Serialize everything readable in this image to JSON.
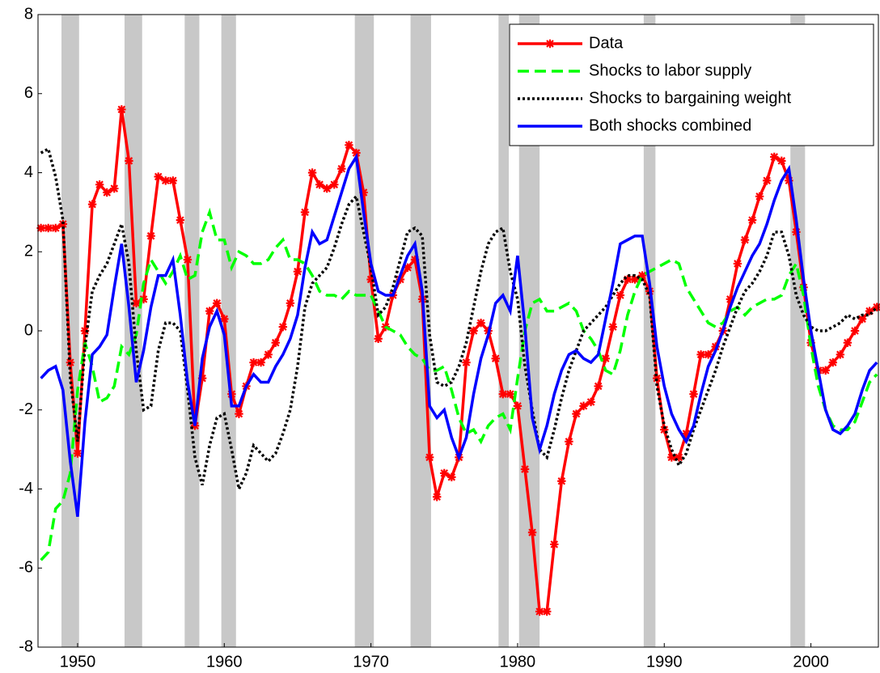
{
  "chart_data": {
    "type": "line",
    "x": [
      1947.5,
      1948,
      1948.5,
      1949,
      1949.5,
      1950,
      1950.5,
      1951,
      1951.5,
      1952,
      1952.5,
      1953,
      1953.5,
      1954,
      1954.5,
      1955,
      1955.5,
      1956,
      1956.5,
      1957,
      1957.5,
      1958,
      1958.5,
      1959,
      1959.5,
      1960,
      1960.5,
      1961,
      1961.5,
      1962,
      1962.5,
      1963,
      1963.5,
      1964,
      1964.5,
      1965,
      1965.5,
      1966,
      1966.5,
      1967,
      1967.5,
      1968,
      1968.5,
      1969,
      1969.5,
      1970,
      1970.5,
      1971,
      1971.5,
      1972,
      1972.5,
      1973,
      1973.5,
      1974,
      1974.5,
      1975,
      1975.5,
      1976,
      1976.5,
      1977,
      1977.5,
      1978,
      1978.5,
      1979,
      1979.5,
      1980,
      1980.5,
      1981,
      1981.5,
      1982,
      1982.5,
      1983,
      1983.5,
      1984,
      1984.5,
      1985,
      1985.5,
      1986,
      1986.5,
      1987,
      1987.5,
      1988,
      1988.5,
      1989,
      1989.5,
      1990,
      1990.5,
      1991,
      1991.5,
      1992,
      1992.5,
      1993,
      1993.5,
      1994,
      1994.5,
      1995,
      1995.5,
      1996,
      1996.5,
      1997,
      1997.5,
      1998,
      1998.5,
      1999,
      1999.5,
      2000,
      2000.5,
      2001,
      2001.5,
      2002,
      2002.5,
      2003,
      2003.5,
      2004,
      2004.5
    ],
    "series": [
      {
        "name": "Data",
        "color": "#ff0000",
        "line_style": "solid",
        "marker": "x",
        "values": [
          2.6,
          2.6,
          2.6,
          2.7,
          -0.8,
          -3.1,
          0.0,
          3.2,
          3.7,
          3.5,
          3.6,
          5.6,
          4.3,
          0.7,
          0.8,
          2.4,
          3.9,
          3.8,
          3.8,
          2.8,
          1.8,
          -2.4,
          -1.2,
          0.5,
          0.7,
          0.3,
          -1.6,
          -2.1,
          -1.4,
          -0.8,
          -0.8,
          -0.6,
          -0.3,
          0.1,
          0.7,
          1.5,
          3.0,
          4.0,
          3.7,
          3.6,
          3.7,
          4.1,
          4.7,
          4.5,
          3.5,
          1.3,
          -0.2,
          0.1,
          0.9,
          1.3,
          1.6,
          1.8,
          0.8,
          -3.2,
          -4.2,
          -3.6,
          -3.7,
          -3.2,
          -0.8,
          0.0,
          0.2,
          0.0,
          -0.7,
          -1.6,
          -1.6,
          -1.9,
          -3.5,
          -5.1,
          -7.1,
          -7.1,
          -5.4,
          -3.8,
          -2.8,
          -2.1,
          -1.9,
          -1.8,
          -1.4,
          -0.7,
          0.1,
          0.9,
          1.3,
          1.3,
          1.4,
          1.0,
          -1.2,
          -2.5,
          -3.2,
          -3.2,
          -2.6,
          -1.6,
          -0.6,
          -0.6,
          -0.4,
          0.0,
          0.8,
          1.7,
          2.3,
          2.8,
          3.4,
          3.8,
          4.4,
          4.3,
          3.8,
          2.5,
          1.1,
          -0.3,
          -1.0,
          -1.0,
          -0.8,
          -0.6,
          -0.3,
          0.0,
          0.3,
          0.5,
          0.6
        ]
      },
      {
        "name": "Shocks to labor supply",
        "color": "#00ff00",
        "line_style": "dashed",
        "values": [
          -5.8,
          -5.6,
          -4.5,
          -4.3,
          -3.6,
          -1.5,
          -0.3,
          -0.9,
          -1.8,
          -1.7,
          -1.4,
          -0.4,
          -0.6,
          -0.1,
          1.2,
          1.8,
          1.5,
          1.2,
          1.5,
          1.9,
          1.3,
          1.4,
          2.5,
          3.0,
          2.3,
          2.3,
          1.6,
          2.0,
          1.9,
          1.7,
          1.7,
          1.8,
          2.1,
          2.3,
          1.8,
          1.8,
          1.7,
          1.4,
          1.0,
          0.9,
          0.9,
          0.8,
          1.0,
          0.9,
          0.9,
          0.9,
          0.5,
          0.1,
          0.0,
          -0.1,
          -0.4,
          -0.6,
          -0.7,
          -1.0,
          -1.0,
          -0.9,
          -1.5,
          -2.2,
          -2.6,
          -2.5,
          -2.8,
          -2.4,
          -2.2,
          -2.1,
          -2.5,
          -1.2,
          0.0,
          0.7,
          0.8,
          0.5,
          0.5,
          0.6,
          0.7,
          0.5,
          0.0,
          -0.2,
          -0.5,
          -1.0,
          -1.1,
          -0.5,
          0.4,
          1.0,
          1.4,
          1.5,
          1.6,
          1.7,
          1.8,
          1.7,
          1.1,
          0.8,
          0.5,
          0.2,
          0.1,
          0.2,
          0.5,
          0.6,
          0.4,
          0.6,
          0.7,
          0.8,
          0.8,
          0.9,
          1.4,
          1.7,
          0.9,
          -0.4,
          -1.4,
          -2.0,
          -2.4,
          -2.5,
          -2.5,
          -2.3,
          -1.8,
          -1.3,
          -1.1
        ]
      },
      {
        "name": "Shocks to bargaining weight",
        "color": "#000000",
        "line_style": "dotted",
        "values": [
          4.5,
          4.6,
          3.9,
          2.8,
          -1.2,
          -2.8,
          -0.4,
          1.0,
          1.4,
          1.7,
          2.2,
          2.7,
          1.7,
          -0.5,
          -2.0,
          -1.9,
          -0.5,
          0.2,
          0.2,
          0.0,
          -1.5,
          -3.2,
          -3.9,
          -2.9,
          -2.2,
          -2.1,
          -3.0,
          -4.0,
          -3.6,
          -2.9,
          -3.1,
          -3.3,
          -3.1,
          -2.6,
          -2.0,
          -0.9,
          0.6,
          1.2,
          1.4,
          1.6,
          2.1,
          2.7,
          3.2,
          3.4,
          2.5,
          1.6,
          0.4,
          0.6,
          1.1,
          1.8,
          2.5,
          2.6,
          2.4,
          -0.1,
          -1.3,
          -1.4,
          -1.3,
          -0.9,
          -0.3,
          0.6,
          1.5,
          2.2,
          2.5,
          2.6,
          1.5,
          0.8,
          -0.9,
          -2.0,
          -3.0,
          -3.2,
          -2.5,
          -1.7,
          -1.0,
          -0.5,
          0.0,
          0.2,
          0.4,
          0.6,
          0.9,
          1.2,
          1.4,
          1.4,
          1.3,
          0.9,
          -1.4,
          -2.4,
          -3.0,
          -3.4,
          -3.1,
          -2.5,
          -2.0,
          -1.5,
          -1.0,
          -0.4,
          0.1,
          0.6,
          1.0,
          1.2,
          1.5,
          1.9,
          2.5,
          2.5,
          1.9,
          0.9,
          0.4,
          0.1,
          0.0,
          0.0,
          0.1,
          0.2,
          0.4,
          0.3,
          0.4,
          0.4,
          0.6
        ]
      },
      {
        "name": "Both shocks combined",
        "color": "#0000ff",
        "line_style": "solid",
        "values": [
          -1.2,
          -1.0,
          -0.9,
          -1.5,
          -3.3,
          -4.7,
          -2.3,
          -0.6,
          -0.4,
          -0.1,
          1.1,
          2.2,
          0.6,
          -1.3,
          -0.5,
          0.6,
          1.4,
          1.4,
          1.8,
          0.4,
          -1.3,
          -2.4,
          -0.7,
          0.1,
          0.5,
          -0.1,
          -1.9,
          -1.9,
          -1.4,
          -1.1,
          -1.3,
          -1.3,
          -0.9,
          -0.6,
          -0.2,
          0.4,
          1.6,
          2.5,
          2.2,
          2.3,
          2.9,
          3.5,
          4.1,
          4.4,
          3.0,
          1.7,
          1.0,
          0.9,
          0.9,
          1.4,
          1.9,
          2.2,
          1.0,
          -1.9,
          -2.2,
          -2.0,
          -2.7,
          -3.2,
          -2.7,
          -1.6,
          -0.7,
          -0.1,
          0.7,
          0.9,
          0.5,
          1.9,
          0.1,
          -2.2,
          -3.0,
          -2.4,
          -1.6,
          -1.0,
          -0.6,
          -0.5,
          -0.7,
          -0.8,
          -0.6,
          0.3,
          1.2,
          2.2,
          2.3,
          2.4,
          2.4,
          1.2,
          -0.4,
          -1.4,
          -2.1,
          -2.5,
          -2.8,
          -2.4,
          -1.6,
          -0.9,
          -0.5,
          0.0,
          0.6,
          1.1,
          1.5,
          1.9,
          2.2,
          2.7,
          3.3,
          3.8,
          4.1,
          2.8,
          1.3,
          0.0,
          -1.0,
          -2.0,
          -2.5,
          -2.6,
          -2.4,
          -2.1,
          -1.5,
          -1.0,
          -0.8
        ]
      }
    ],
    "shaded_regions": [
      [
        1948.9,
        1950.1
      ],
      [
        1953.2,
        1954.4
      ],
      [
        1957.3,
        1958.3
      ],
      [
        1959.8,
        1960.8
      ],
      [
        1968.9,
        1970.2
      ],
      [
        1972.7,
        1974.1
      ],
      [
        1978.7,
        1979.4
      ],
      [
        1980.1,
        1981.5
      ],
      [
        1988.6,
        1989.4
      ],
      [
        1998.6,
        1999.6
      ]
    ],
    "shade_color": "#c8c8c8",
    "xlim": [
      1947.3,
      2004.6
    ],
    "xticks": [
      1950,
      1960,
      1970,
      1980,
      1990,
      2000
    ],
    "ylim": [
      -8,
      8
    ],
    "yticks": [
      -8,
      -6,
      -4,
      -2,
      0,
      2,
      4,
      6,
      8
    ],
    "grid": false,
    "legend": "upper right"
  }
}
